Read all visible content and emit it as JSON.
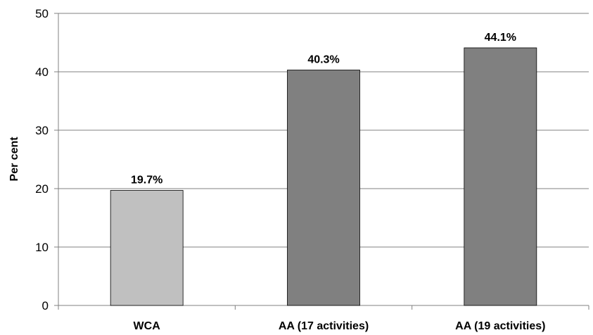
{
  "chart_data": {
    "type": "bar",
    "categories": [
      "WCA",
      "AA (17 activities)",
      "AA (19 activities)"
    ],
    "values": [
      19.7,
      40.3,
      44.1
    ],
    "data_labels": [
      "19.7%",
      "40.3%",
      "44.1%"
    ],
    "bar_colors": [
      "#c0c0c0",
      "#808080",
      "#808080"
    ],
    "ylabel": "Per cent",
    "ylim": [
      0,
      50
    ],
    "yticks": [
      0,
      10,
      20,
      30,
      40,
      50
    ],
    "ytick_labels": [
      "0",
      "10",
      "20",
      "30",
      "40",
      "50"
    ],
    "grid": true,
    "legend": "none"
  }
}
